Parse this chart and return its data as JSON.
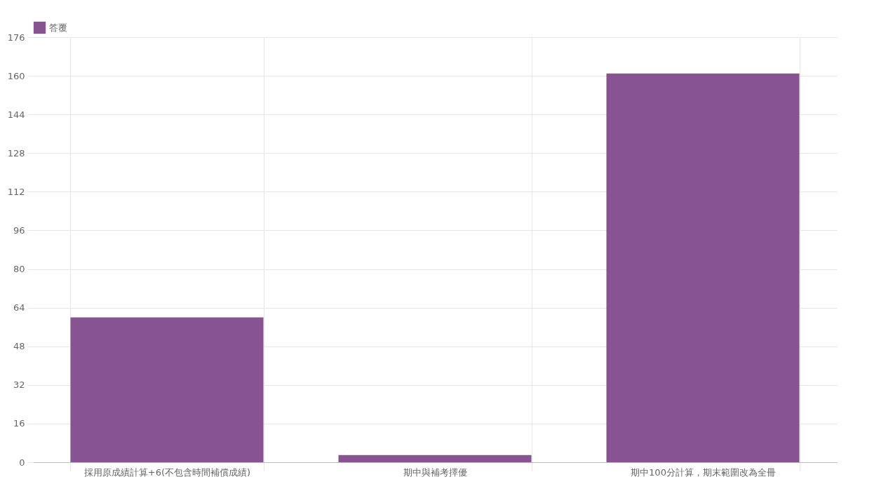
{
  "chart_data": {
    "type": "bar",
    "categories": [
      "採用原成績計算+6(不包含時間補償成績)",
      "期中與補考擇優",
      "期中100分計算，期末範圍改為全冊"
    ],
    "series": [
      {
        "name": "答覆",
        "color": "#875491",
        "values": [
          60,
          3,
          161
        ]
      }
    ],
    "ylim": [
      0,
      176
    ],
    "yticks": [
      0,
      16,
      32,
      48,
      64,
      80,
      96,
      112,
      128,
      144,
      160,
      176
    ],
    "grid": true,
    "legend": "top"
  }
}
